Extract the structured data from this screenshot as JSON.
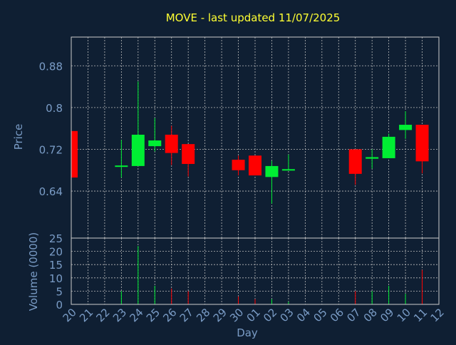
{
  "chart_data": {
    "type": "candlestick",
    "title": "MOVE - last updated 11/07/2025",
    "xlabel": "Day",
    "x_ticks": [
      "20",
      "21",
      "22",
      "23",
      "24",
      "25",
      "26",
      "27",
      "28",
      "29",
      "30",
      "01",
      "02",
      "03",
      "04",
      "05",
      "06",
      "07",
      "08",
      "09",
      "10",
      "11",
      "12"
    ],
    "price_panel": {
      "ylabel": "Price",
      "ylim": [
        0.55,
        0.935
      ],
      "y_ticks": [
        "0.64",
        "0.72",
        "0.8",
        "0.88"
      ],
      "grid": true
    },
    "volume_panel": {
      "ylabel": "Volume (0000)",
      "ylim": [
        0,
        25
      ],
      "y_ticks": [
        "0",
        "5",
        "10",
        "15",
        "20",
        "25"
      ],
      "grid": true
    },
    "candles": [
      {
        "day": "20",
        "open": 0.755,
        "high": 0.755,
        "low": 0.666,
        "close": 0.666,
        "volume": 0
      },
      {
        "day": "23",
        "open": 0.687,
        "high": 0.738,
        "low": 0.666,
        "close": 0.689,
        "volume": 5
      },
      {
        "day": "24",
        "open": 0.688,
        "high": 0.85,
        "low": 0.688,
        "close": 0.748,
        "volume": 22
      },
      {
        "day": "25",
        "open": 0.726,
        "high": 0.78,
        "low": 0.716,
        "close": 0.737,
        "volume": 7
      },
      {
        "day": "26",
        "open": 0.748,
        "high": 0.765,
        "low": 0.69,
        "close": 0.713,
        "volume": 6
      },
      {
        "day": "27",
        "open": 0.73,
        "high": 0.73,
        "low": 0.668,
        "close": 0.692,
        "volume": 5
      },
      {
        "day": "30",
        "open": 0.7,
        "high": 0.708,
        "low": 0.67,
        "close": 0.68,
        "volume": 3
      },
      {
        "day": "01",
        "open": 0.708,
        "high": 0.708,
        "low": 0.67,
        "close": 0.67,
        "volume": 2
      },
      {
        "day": "02",
        "open": 0.667,
        "high": 0.698,
        "low": 0.616,
        "close": 0.688,
        "volume": 2
      },
      {
        "day": "03",
        "open": 0.68,
        "high": 0.71,
        "low": 0.68,
        "close": 0.682,
        "volume": 1
      },
      {
        "day": "07",
        "open": 0.72,
        "high": 0.72,
        "low": 0.652,
        "close": 0.673,
        "volume": 5
      },
      {
        "day": "08",
        "open": 0.702,
        "high": 0.72,
        "low": 0.683,
        "close": 0.705,
        "volume": 5
      },
      {
        "day": "09",
        "open": 0.703,
        "high": 0.75,
        "low": 0.703,
        "close": 0.744,
        "volume": 7
      },
      {
        "day": "10",
        "open": 0.757,
        "high": 0.793,
        "low": 0.74,
        "close": 0.767,
        "volume": 4
      },
      {
        "day": "11",
        "open": 0.767,
        "high": 0.767,
        "low": 0.674,
        "close": 0.697,
        "volume": 13
      }
    ],
    "colors": {
      "up": "#00ee33",
      "down": "#ff0000",
      "background": "#0f1f33",
      "title": "#ffff33",
      "axis_text": "#7a9cc6",
      "axis_label": "#7a9cc6",
      "frame": "#cccccc",
      "grid": "#bbbbbb"
    }
  }
}
